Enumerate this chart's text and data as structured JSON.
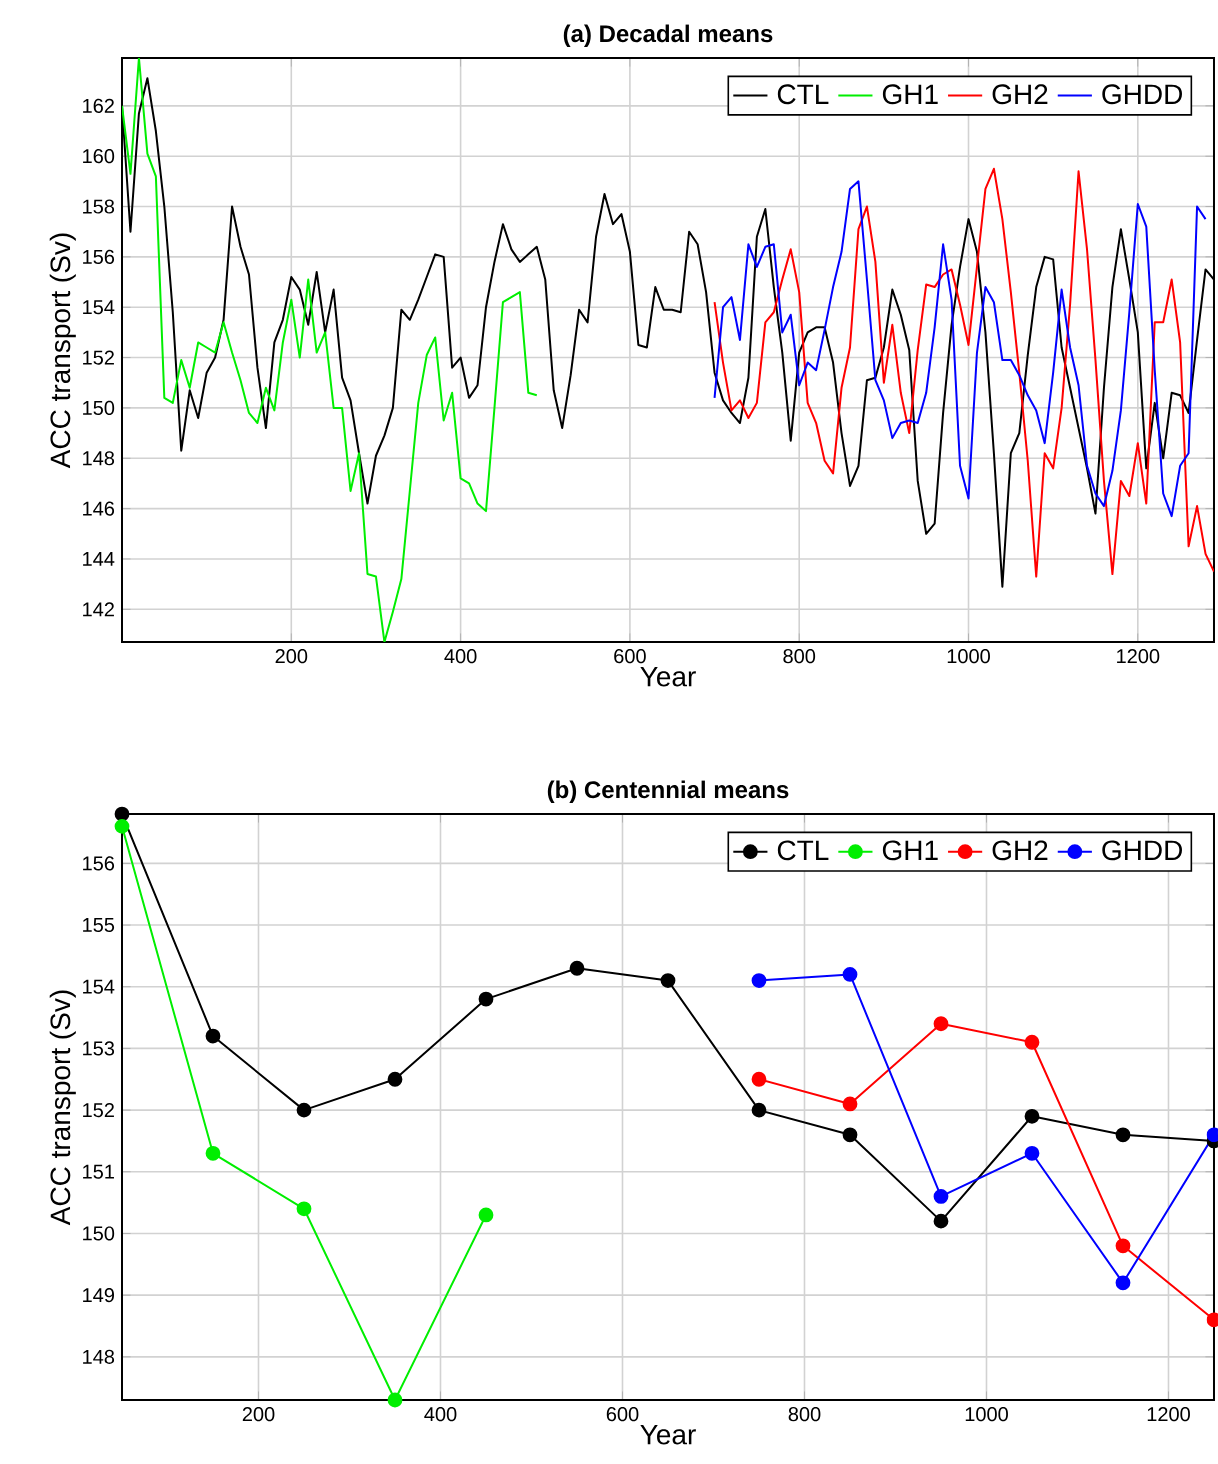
{
  "chart_data": [
    {
      "type": "line",
      "title": "(a) Decadal means",
      "xlabel": "Year",
      "ylabel": "ACC transport (Sv)",
      "xlim": [
        0,
        1290
      ],
      "ylim": [
        140.7,
        163.9
      ],
      "xticks": [
        200,
        400,
        600,
        800,
        1000,
        1200
      ],
      "yticks": [
        142,
        144,
        146,
        148,
        150,
        152,
        154,
        156,
        158,
        160,
        162
      ],
      "grid": true,
      "legend": "top right",
      "marker": "none",
      "line_style": "solid",
      "series": [
        {
          "name": "CTL",
          "color": "#000000",
          "x": [
            0,
            10,
            20,
            30,
            40,
            50,
            60,
            70,
            80,
            90,
            100,
            110,
            120,
            130,
            140,
            150,
            160,
            170,
            180,
            190,
            200,
            210,
            220,
            230,
            240,
            250,
            260,
            270,
            280,
            290,
            300,
            310,
            320,
            330,
            340,
            350,
            360,
            370,
            380,
            390,
            400,
            410,
            420,
            430,
            440,
            450,
            460,
            470,
            480,
            490,
            500,
            510,
            520,
            530,
            540,
            550,
            560,
            570,
            580,
            590,
            600,
            610,
            620,
            630,
            640,
            650,
            660,
            670,
            680,
            690,
            700,
            710,
            720,
            730,
            740,
            750,
            760,
            770,
            780,
            790,
            800,
            810,
            820,
            830,
            840,
            850,
            860,
            870,
            880,
            890,
            900,
            910,
            920,
            930,
            940,
            950,
            960,
            970,
            980,
            990,
            1000,
            1010,
            1020,
            1030,
            1040,
            1050,
            1060,
            1070,
            1080,
            1090,
            1100,
            1110,
            1120,
            1130,
            1140,
            1150,
            1160,
            1170,
            1180,
            1190,
            1200,
            1210,
            1220,
            1230,
            1240,
            1250,
            1260,
            1270,
            1280,
            1290
          ],
          "values": [
            162,
            157.0,
            161.7,
            163.1,
            161,
            158,
            153.8,
            148.3,
            150.7,
            149.6,
            151.4,
            152,
            153.5,
            158,
            156.4,
            155.3,
            151.6,
            149.2,
            152.6,
            153.5,
            155.2,
            154.7,
            153.3,
            155.4,
            153.0,
            154.7,
            151.2,
            150.3,
            148.2,
            146.2,
            148.1,
            148.9,
            150.0,
            153.9,
            153.5,
            154.3,
            155.2,
            156.1,
            156.0,
            151.6,
            152,
            150.4,
            150.9,
            154,
            155.8,
            157.3,
            156.3,
            155.8,
            156.1,
            156.4,
            155.1,
            150.7,
            149.2,
            151.3,
            153.9,
            153.4,
            156.8,
            158.5,
            157.3,
            157.7,
            156.2,
            152.5,
            152.4,
            154.8,
            153.9,
            153.9,
            153.8,
            157.0,
            156.5,
            154.6,
            151.4,
            150.3,
            149.8,
            149.4,
            151.2,
            156.8,
            157.9,
            154.8,
            152.2,
            148.7,
            152.2,
            153.0,
            153.2,
            153.2,
            151.8,
            149.0,
            146.9,
            147.7,
            151.1,
            151.2,
            152.4,
            154.7,
            153.7,
            152.3,
            147.1,
            145.0,
            145.4,
            149.8,
            153.3,
            155.6,
            157.5,
            156.2,
            153.0,
            148.2,
            142.9,
            148.2,
            149.0,
            152.1,
            154.8,
            156.0,
            155.9,
            152.4,
            150.8,
            149.2,
            147.6,
            145.8,
            150.8,
            154.8,
            157.1,
            155.1,
            153.0,
            147.6,
            150.2,
            148.0,
            150.6,
            150.5,
            149.8,
            152.7,
            155.5,
            155.1
          ]
        },
        {
          "name": "GH1",
          "color": "#00ee00",
          "x": [
            0,
            10,
            20,
            30,
            40,
            50,
            60,
            70,
            80,
            90,
            100,
            110,
            120,
            130,
            140,
            150,
            160,
            170,
            180,
            190,
            200,
            210,
            220,
            230,
            240,
            250,
            260,
            270,
            280,
            290,
            300,
            310,
            320,
            330,
            340,
            350,
            360,
            370,
            380,
            390,
            400,
            410,
            420,
            430,
            440,
            450,
            460,
            470,
            480,
            490
          ],
          "values": [
            162,
            159.3,
            163.9,
            160.1,
            159.2,
            150.4,
            150.2,
            151.9,
            150.8,
            152.6,
            152.4,
            152.2,
            153.4,
            152.2,
            151.1,
            149.8,
            149.4,
            150.8,
            149.9,
            152.6,
            154.3,
            152.0,
            155.1,
            152.2,
            153.0,
            150.0,
            150.0,
            146.7,
            148.2,
            143.4,
            143.3,
            140.7,
            141.9,
            143.2,
            146.7,
            150.2,
            152.1,
            152.8,
            149.5,
            150.6,
            147.2,
            147.0,
            146.2,
            145.9,
            150.0,
            154.2,
            154.4,
            154.6,
            150.6,
            150.5
          ]
        },
        {
          "name": "GH2",
          "color": "#ff0000",
          "x": [
            700,
            710,
            720,
            730,
            740,
            750,
            760,
            770,
            780,
            790,
            800,
            810,
            820,
            830,
            840,
            850,
            860,
            870,
            880,
            890,
            900,
            910,
            920,
            930,
            940,
            950,
            960,
            970,
            980,
            990,
            1000,
            1010,
            1020,
            1030,
            1040,
            1050,
            1060,
            1070,
            1080,
            1090,
            1100,
            1110,
            1120,
            1130,
            1140,
            1150,
            1160,
            1170,
            1180,
            1190,
            1200,
            1210,
            1220,
            1230,
            1240,
            1250,
            1260,
            1270,
            1280,
            1290
          ],
          "values": [
            154.2,
            151.8,
            149.9,
            150.3,
            149.6,
            150.2,
            153.4,
            153.8,
            155.1,
            156.3,
            154.6,
            150.2,
            149.4,
            147.9,
            147.4,
            150.8,
            152.4,
            157.1,
            158.0,
            155.8,
            151.0,
            153.3,
            150.6,
            149.0,
            152.3,
            154.9,
            154.8,
            155.3,
            155.5,
            154.1,
            152.5,
            155.6,
            158.7,
            159.5,
            157.5,
            154.6,
            151.4,
            147.9,
            143.3,
            148.2,
            147.6,
            150.0,
            154.1,
            159.4,
            156.3,
            151.9,
            147.1,
            143.4,
            147.1,
            146.5,
            148.6,
            146.2,
            153.4,
            153.4,
            155.1,
            152.6,
            144.5,
            146.1,
            144.2,
            143.5
          ]
        },
        {
          "name": "GHDD",
          "color": "#0000ff",
          "x": [
            700,
            710,
            720,
            730,
            740,
            750,
            760,
            770,
            780,
            790,
            800,
            810,
            820,
            830,
            840,
            850,
            860,
            870,
            880,
            890,
            900,
            910,
            920,
            930,
            940,
            950,
            960,
            970,
            980,
            990,
            1000,
            1010,
            1020,
            1030,
            1040,
            1050,
            1060,
            1070,
            1080,
            1090,
            1100,
            1110,
            1120,
            1130,
            1140,
            1150,
            1160,
            1170,
            1180,
            1190,
            1200,
            1210,
            1220,
            1230,
            1240,
            1250,
            1260,
            1270,
            1280
          ],
          "values": [
            150.4,
            154.0,
            154.4,
            152.7,
            156.5,
            155.6,
            156.4,
            156.5,
            153.0,
            153.7,
            150.9,
            151.8,
            151.5,
            153.1,
            154.8,
            156.2,
            158.7,
            159.0,
            155.1,
            151.1,
            150.3,
            148.8,
            149.4,
            149.5,
            149.4,
            150.6,
            153.2,
            156.5,
            154.3,
            147.7,
            146.4,
            152.2,
            154.8,
            154.2,
            151.9,
            151.9,
            151.3,
            150.5,
            149.9,
            148.6,
            151.4,
            154.7,
            152.4,
            150.9,
            147.7,
            146.6,
            146.1,
            147.5,
            149.9,
            153.8,
            158.1,
            157.2,
            151.5,
            146.6,
            145.7,
            147.7,
            148.2,
            158.0,
            157.5
          ]
        }
      ]
    },
    {
      "type": "line",
      "title": "(b) Centennial means",
      "xlabel": "Year",
      "ylabel": "ACC transport (Sv)",
      "xlim": [
        50,
        1250
      ],
      "ylim": [
        147.3,
        156.8
      ],
      "xticks": [
        200,
        400,
        600,
        800,
        1000,
        1200
      ],
      "yticks": [
        148,
        149,
        150,
        151,
        152,
        153,
        154,
        155,
        156
      ],
      "grid": true,
      "legend": "top right",
      "marker": "circle",
      "line_style": "solid",
      "series": [
        {
          "name": "CTL",
          "color": "#000000",
          "x": [
            50,
            150,
            250,
            350,
            450,
            550,
            650,
            750,
            850,
            950,
            1050,
            1150,
            1250
          ],
          "values": [
            156.8,
            153.2,
            152.0,
            152.5,
            153.8,
            154.3,
            154.1,
            152.0,
            151.6,
            150.2,
            151.9,
            151.6,
            151.5
          ]
        },
        {
          "name": "GH1",
          "color": "#00ee00",
          "x": [
            50,
            150,
            250,
            350,
            450
          ],
          "values": [
            156.6,
            151.3,
            150.4,
            147.3,
            150.3
          ]
        },
        {
          "name": "GH2",
          "color": "#ff0000",
          "x": [
            750,
            850,
            950,
            1050,
            1150,
            1250
          ],
          "values": [
            152.5,
            152.1,
            153.4,
            153.1,
            149.8,
            148.6
          ]
        },
        {
          "name": "GHDD",
          "color": "#0000ff",
          "x": [
            750,
            850,
            950,
            1050,
            1150,
            1250
          ],
          "values": [
            154.1,
            154.2,
            150.6,
            151.3,
            149.2,
            151.6
          ]
        }
      ]
    }
  ]
}
